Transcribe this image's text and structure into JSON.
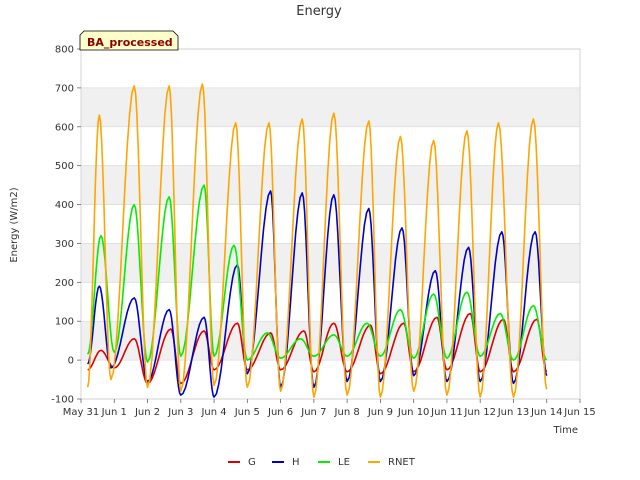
{
  "chart_data": {
    "type": "line",
    "title": "Energy",
    "xlabel": "Time",
    "ylabel": "Energy (W/m2)",
    "badge": "BA_processed",
    "ylim": [
      -100,
      800
    ],
    "yticks": [
      -100,
      0,
      100,
      200,
      300,
      400,
      500,
      600,
      700,
      800
    ],
    "xlim": [
      0,
      15
    ],
    "xticks": [
      0,
      1,
      2,
      3,
      4,
      5,
      6,
      7,
      8,
      9,
      10,
      11,
      12,
      13,
      14,
      15
    ],
    "xtick_labels": [
      "May 31",
      "Jun 1",
      "Jun 2",
      "Jun 3",
      "Jun 4",
      "Jun 5",
      "Jun 6",
      "Jun 7",
      "Jun 8",
      "Jun 9",
      "Jun 10",
      "Jun 11",
      "Jun 12",
      "Jun 13",
      "Jun 14",
      "Jun 15"
    ],
    "x_unit": "days since May 31 00:00",
    "grid": true,
    "legend_position": "bottom",
    "series": [
      {
        "name": "G",
        "color": "#dd0000",
        "points": [
          [
            0.2,
            -25
          ],
          [
            0.6,
            25
          ],
          [
            1.0,
            -20
          ],
          [
            1.6,
            55
          ],
          [
            2.0,
            -60
          ],
          [
            2.7,
            80
          ],
          [
            3.0,
            -60
          ],
          [
            3.7,
            75
          ],
          [
            4.0,
            -25
          ],
          [
            4.7,
            95
          ],
          [
            5.0,
            -25
          ],
          [
            5.7,
            70
          ],
          [
            6.0,
            -25
          ],
          [
            6.7,
            75
          ],
          [
            7.0,
            -30
          ],
          [
            7.6,
            95
          ],
          [
            8.0,
            -30
          ],
          [
            8.7,
            90
          ],
          [
            9.0,
            -35
          ],
          [
            9.7,
            95
          ],
          [
            10.0,
            -30
          ],
          [
            10.7,
            110
          ],
          [
            11.0,
            -25
          ],
          [
            11.7,
            120
          ],
          [
            12.0,
            -30
          ],
          [
            12.7,
            105
          ],
          [
            13.0,
            -30
          ],
          [
            13.7,
            105
          ],
          [
            14.0,
            -30
          ]
        ]
      },
      {
        "name": "H",
        "color": "#0000cc",
        "points": [
          [
            0.2,
            -10
          ],
          [
            0.55,
            190
          ],
          [
            0.9,
            -20
          ],
          [
            1.6,
            160
          ],
          [
            2.0,
            -55
          ],
          [
            2.65,
            130
          ],
          [
            3.0,
            -90
          ],
          [
            3.7,
            110
          ],
          [
            4.0,
            -95
          ],
          [
            4.7,
            245
          ],
          [
            5.0,
            -35
          ],
          [
            5.7,
            435
          ],
          [
            6.0,
            -70
          ],
          [
            6.65,
            430
          ],
          [
            7.0,
            -70
          ],
          [
            7.6,
            425
          ],
          [
            8.0,
            -55
          ],
          [
            8.65,
            390
          ],
          [
            9.0,
            -55
          ],
          [
            9.65,
            340
          ],
          [
            10.0,
            -40
          ],
          [
            10.65,
            230
          ],
          [
            11.0,
            -55
          ],
          [
            11.65,
            290
          ],
          [
            12.0,
            -55
          ],
          [
            12.65,
            330
          ],
          [
            13.0,
            -60
          ],
          [
            13.65,
            330
          ],
          [
            14.0,
            -40
          ]
        ]
      },
      {
        "name": "LE",
        "color": "#00ee00",
        "points": [
          [
            0.2,
            15
          ],
          [
            0.6,
            320
          ],
          [
            1.0,
            20
          ],
          [
            1.6,
            400
          ],
          [
            2.0,
            -5
          ],
          [
            2.65,
            420
          ],
          [
            3.0,
            10
          ],
          [
            3.7,
            450
          ],
          [
            4.0,
            10
          ],
          [
            4.6,
            295
          ],
          [
            5.0,
            0
          ],
          [
            5.6,
            70
          ],
          [
            6.0,
            5
          ],
          [
            6.6,
            55
          ],
          [
            7.0,
            10
          ],
          [
            7.6,
            65
          ],
          [
            8.0,
            10
          ],
          [
            8.6,
            95
          ],
          [
            9.0,
            10
          ],
          [
            9.6,
            130
          ],
          [
            10.0,
            5
          ],
          [
            10.6,
            170
          ],
          [
            11.0,
            5
          ],
          [
            11.6,
            175
          ],
          [
            12.0,
            10
          ],
          [
            12.6,
            120
          ],
          [
            13.0,
            0
          ],
          [
            13.6,
            140
          ],
          [
            14.0,
            0
          ]
        ]
      },
      {
        "name": "RNET",
        "color": "#ffa500",
        "points": [
          [
            0.2,
            -70
          ],
          [
            0.55,
            630
          ],
          [
            0.9,
            -50
          ],
          [
            1.6,
            705
          ],
          [
            2.0,
            -70
          ],
          [
            2.65,
            705
          ],
          [
            3.0,
            -80
          ],
          [
            3.65,
            710
          ],
          [
            4.0,
            -65
          ],
          [
            4.65,
            610
          ],
          [
            5.0,
            -70
          ],
          [
            5.65,
            610
          ],
          [
            6.0,
            -80
          ],
          [
            6.65,
            620
          ],
          [
            7.0,
            -95
          ],
          [
            7.6,
            635
          ],
          [
            8.0,
            -90
          ],
          [
            8.65,
            615
          ],
          [
            9.0,
            -95
          ],
          [
            9.6,
            575
          ],
          [
            10.0,
            -80
          ],
          [
            10.6,
            565
          ],
          [
            11.0,
            -90
          ],
          [
            11.6,
            590
          ],
          [
            12.0,
            -95
          ],
          [
            12.55,
            610
          ],
          [
            13.0,
            -95
          ],
          [
            13.6,
            620
          ],
          [
            14.0,
            -75
          ]
        ]
      }
    ]
  }
}
